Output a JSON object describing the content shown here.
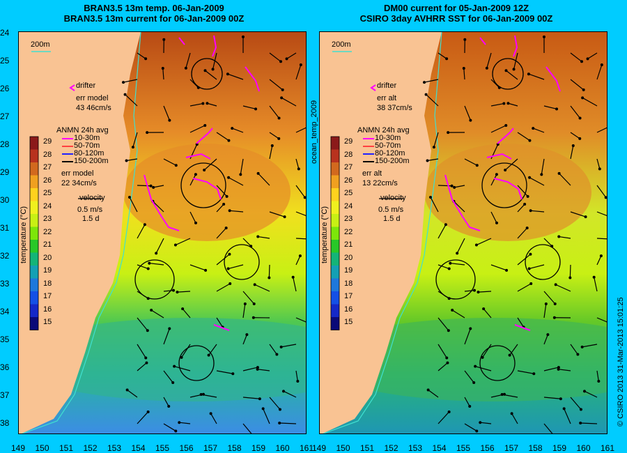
{
  "left_panel": {
    "title_line1": "BRAN3.5 13m temp. 06-Jan-2009",
    "title_line2": "BRAN3.5 13m current for 06-Jan-2009 00Z",
    "scale_label": "200m",
    "drifter_label": "drifter",
    "err_label1": "err model",
    "err_value1": "43 46cm/s",
    "anmn_title": "ANMN 24h avg",
    "depth_bins": [
      "10-30m",
      "50-70m",
      "80-120m",
      "150-200m"
    ],
    "err_label2": "err model",
    "err_value2": "22 34cm/s",
    "velocity_label": "velocity",
    "velocity_value": "0.5 m/s",
    "velocity_days": "1.5 d",
    "colorbar_label": "temperature (°C)"
  },
  "right_panel": {
    "title_line1": "DM00 current for 05-Jan-2009 12Z",
    "title_line2": "CSIRO 3day AVHRR SST for 06-Jan-2009 00Z",
    "scale_label": "200m",
    "drifter_label": "drifter",
    "err_label1": "err alt",
    "err_value1": "38 37cm/s",
    "anmn_title": "ANMN 24h avg",
    "depth_bins": [
      "10-30m",
      "50-70m",
      "80-120m",
      "150-200m"
    ],
    "err_label2": "err alt",
    "err_value2": "13 22cm/s",
    "velocity_label": "velocity",
    "velocity_value": "0.5 m/s",
    "velocity_days": "1.5 d",
    "colorbar_label": "temperature (°C)"
  },
  "colorbar_ticks": [
    "29",
    "28",
    "27",
    "26",
    "25",
    "24",
    "23",
    "22",
    "21",
    "20",
    "19",
    "18",
    "17",
    "16",
    "15"
  ],
  "colorbar_colors": [
    "#8b1a1a",
    "#b8321e",
    "#d2691e",
    "#f0a020",
    "#ffd21e",
    "#f0f01e",
    "#c8f014",
    "#7de60a",
    "#28c828",
    "#14b478",
    "#14a0b4",
    "#1e78dc",
    "#1450e6",
    "#1428c8",
    "#0a0a78"
  ],
  "depth_colors": [
    "#ff00ff",
    "#ff4040",
    "#2020ff",
    "#000000"
  ],
  "lat_ticks": [
    "24",
    "25",
    "26",
    "27",
    "28",
    "29",
    "30",
    "31",
    "32",
    "33",
    "34",
    "35",
    "36",
    "37",
    "38"
  ],
  "lon_ticks": [
    "149",
    "150",
    "151",
    "152",
    "153",
    "154",
    "155",
    "156",
    "157",
    "158",
    "159",
    "160",
    "161"
  ],
  "vertical_label": "ocean_temp_2009",
  "credit": "© CSIRO 2013   31-Mar-2013 15:01:25",
  "land_color": "#f9c393",
  "coast_color": "#40e0d0"
}
